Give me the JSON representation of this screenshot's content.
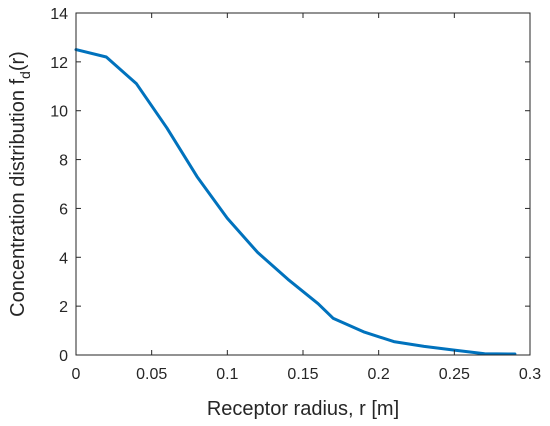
{
  "chart_data": {
    "type": "line",
    "title": "",
    "xlabel": "Receptor radius, r [m]",
    "ylabel": {
      "main": "Concentration distribution f",
      "subscript": "d",
      "suffix": "(r)"
    },
    "xlim": [
      0,
      0.3
    ],
    "ylim": [
      0,
      14
    ],
    "xticks": [
      0,
      0.05,
      0.1,
      0.15,
      0.2,
      0.25,
      0.3
    ],
    "xtick_labels": [
      "0",
      "0.05",
      "0.1",
      "0.15",
      "0.2",
      "0.25",
      "0.3"
    ],
    "yticks": [
      0,
      2,
      4,
      6,
      8,
      10,
      12,
      14
    ],
    "ytick_labels": [
      "0",
      "2",
      "4",
      "6",
      "8",
      "10",
      "12",
      "14"
    ],
    "grid": false,
    "box": true,
    "series": [
      {
        "color": "#0072BD",
        "x": [
          0,
          0.02,
          0.04,
          0.06,
          0.08,
          0.1,
          0.12,
          0.14,
          0.16,
          0.17,
          0.19,
          0.21,
          0.23,
          0.25,
          0.27,
          0.29
        ],
        "y": [
          12.5,
          12.2,
          11.1,
          9.3,
          7.3,
          5.6,
          4.2,
          3.1,
          2.1,
          1.5,
          0.95,
          0.55,
          0.35,
          0.2,
          0.05,
          0.04
        ]
      }
    ]
  }
}
